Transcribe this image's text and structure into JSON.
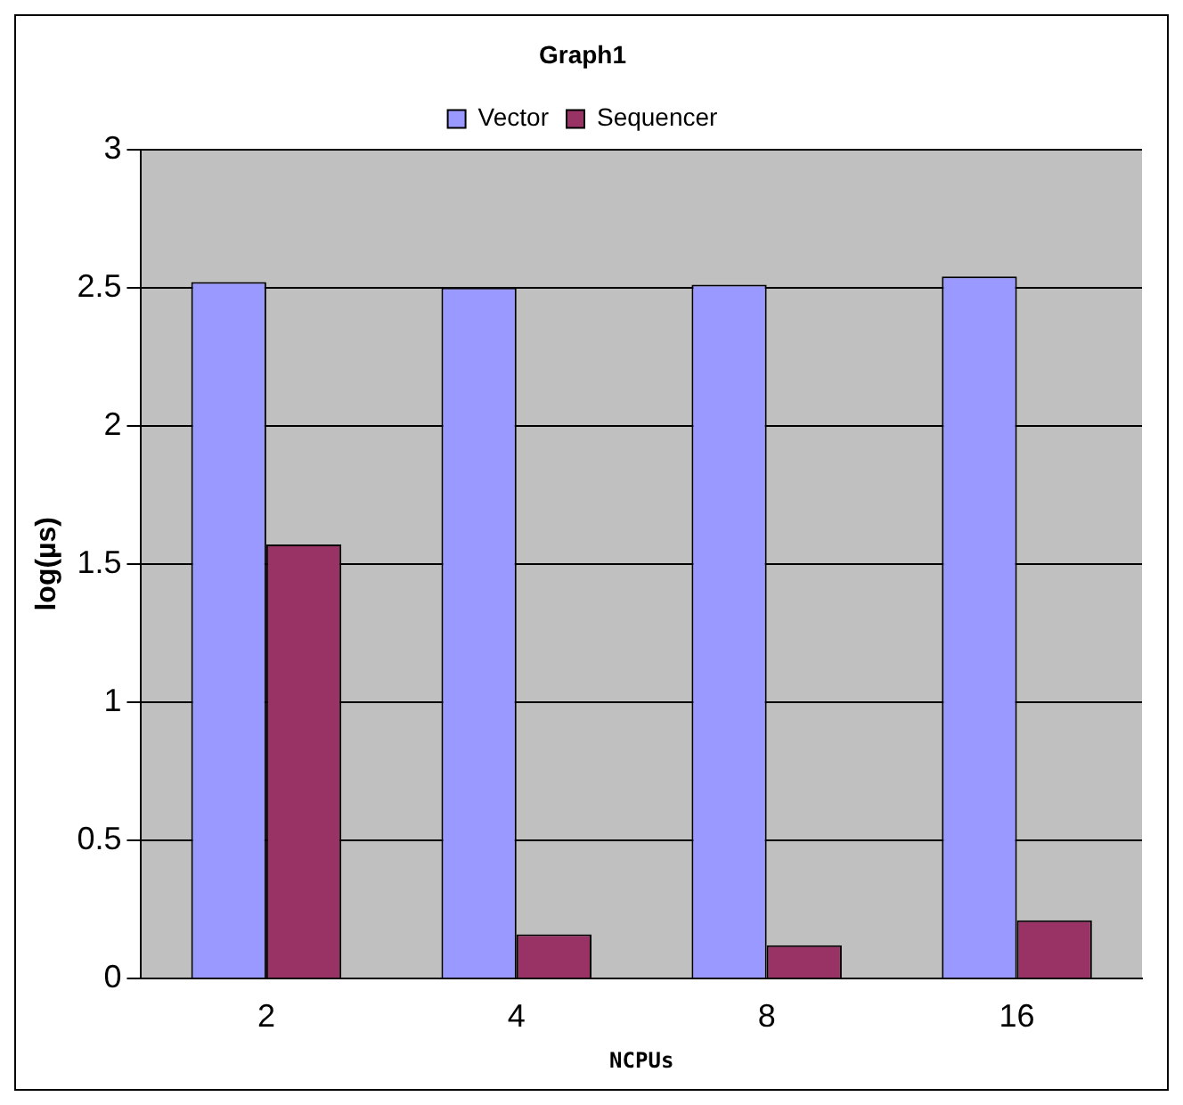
{
  "chart_data": {
    "type": "bar",
    "title": "Graph1",
    "xlabel": "NCPUs",
    "ylabel": "log(µs)",
    "categories": [
      "2",
      "4",
      "8",
      "16"
    ],
    "series": [
      {
        "name": "Vector",
        "color": "#9999ff",
        "values": [
          2.52,
          2.5,
          2.51,
          2.54
        ]
      },
      {
        "name": "Sequencer",
        "color": "#993366",
        "values": [
          1.57,
          0.16,
          0.12,
          0.21
        ]
      }
    ],
    "ylim": [
      0,
      3
    ],
    "yticks": [
      0,
      0.5,
      1,
      1.5,
      2,
      2.5,
      3
    ],
    "grid": "y",
    "legend": "top"
  }
}
